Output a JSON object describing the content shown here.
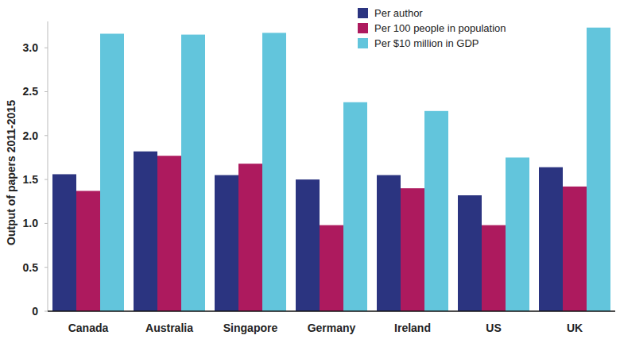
{
  "chart_data": {
    "type": "bar",
    "y_label": "Output of papers 2011-2015",
    "categories": [
      "Canada",
      "Australia",
      "Singapore",
      "Germany",
      "Ireland",
      "US",
      "UK"
    ],
    "series": [
      {
        "name": "Per author",
        "color": "#2b3480",
        "values": [
          1.56,
          1.82,
          1.55,
          1.5,
          1.55,
          1.32,
          1.64
        ]
      },
      {
        "name": "Per 100 people in population",
        "color": "#ad1a5e",
        "values": [
          1.37,
          1.77,
          1.68,
          0.98,
          1.4,
          0.98,
          1.42
        ]
      },
      {
        "name": "Per $10 million in GDP",
        "color": "#62c5dc",
        "values": [
          3.16,
          3.15,
          3.17,
          2.38,
          2.28,
          1.75,
          3.23
        ]
      }
    ],
    "ylim": [
      0,
      3.3
    ],
    "yticks": [
      0,
      0.5,
      {
        "value": 1,
        "label": "1.0"
      },
      1.5,
      {
        "value": 2,
        "label": "2.0"
      },
      2.5,
      {
        "value": 3,
        "label": "3.0"
      }
    ],
    "grid": false,
    "legend": "top"
  }
}
